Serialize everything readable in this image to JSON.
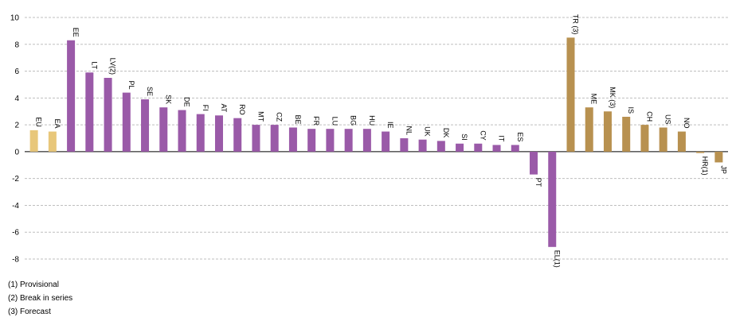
{
  "chart_data": {
    "type": "bar",
    "categories": [
      "EU",
      "EA",
      "EE",
      "LT",
      "LV(2)",
      "PL",
      "SE",
      "SK",
      "DE",
      "FI",
      "AT",
      "RO",
      "MT",
      "CZ",
      "BE",
      "FR",
      "LU",
      "BG",
      "HU",
      "IE",
      "NL",
      "UK",
      "DK",
      "SI",
      "CY",
      "IT",
      "ES",
      "PT",
      "EL(1)",
      "TR (3)",
      "ME",
      "MK (3)",
      "IS",
      "CH",
      "US",
      "NO",
      "HR(1)",
      "JP"
    ],
    "values": [
      1.6,
      1.5,
      8.3,
      5.9,
      5.5,
      4.4,
      3.9,
      3.3,
      3.1,
      2.8,
      2.7,
      2.5,
      2.0,
      2.0,
      1.8,
      1.7,
      1.7,
      1.7,
      1.7,
      1.5,
      1.0,
      0.9,
      0.8,
      0.6,
      0.6,
      0.5,
      0.5,
      -1.7,
      -7.1,
      8.5,
      3.3,
      3.0,
      2.6,
      2.0,
      1.8,
      1.5,
      -0.1,
      -0.8
    ],
    "groups": [
      "agg",
      "agg",
      "ms",
      "ms",
      "ms",
      "ms",
      "ms",
      "ms",
      "ms",
      "ms",
      "ms",
      "ms",
      "ms",
      "ms",
      "ms",
      "ms",
      "ms",
      "ms",
      "ms",
      "ms",
      "ms",
      "ms",
      "ms",
      "ms",
      "ms",
      "ms",
      "ms",
      "ms",
      "ms",
      "other",
      "other",
      "other",
      "other",
      "other",
      "other",
      "other",
      "other",
      "other"
    ],
    "colors": {
      "agg": "#e8c77a",
      "ms": "#9a5aa8",
      "other": "#b89150",
      "grid": "#bfbfbf",
      "axis": "#000000"
    },
    "ylim": [
      -8,
      10
    ],
    "yticks": [
      -8,
      -6,
      -4,
      -2,
      0,
      2,
      4,
      6,
      8,
      10
    ],
    "title": "",
    "xlabel": "",
    "ylabel": "",
    "grid": true,
    "legend": "none"
  },
  "notes": [
    "(1) Provisional",
    "(2) Break in series",
    "(3) Forecast"
  ]
}
